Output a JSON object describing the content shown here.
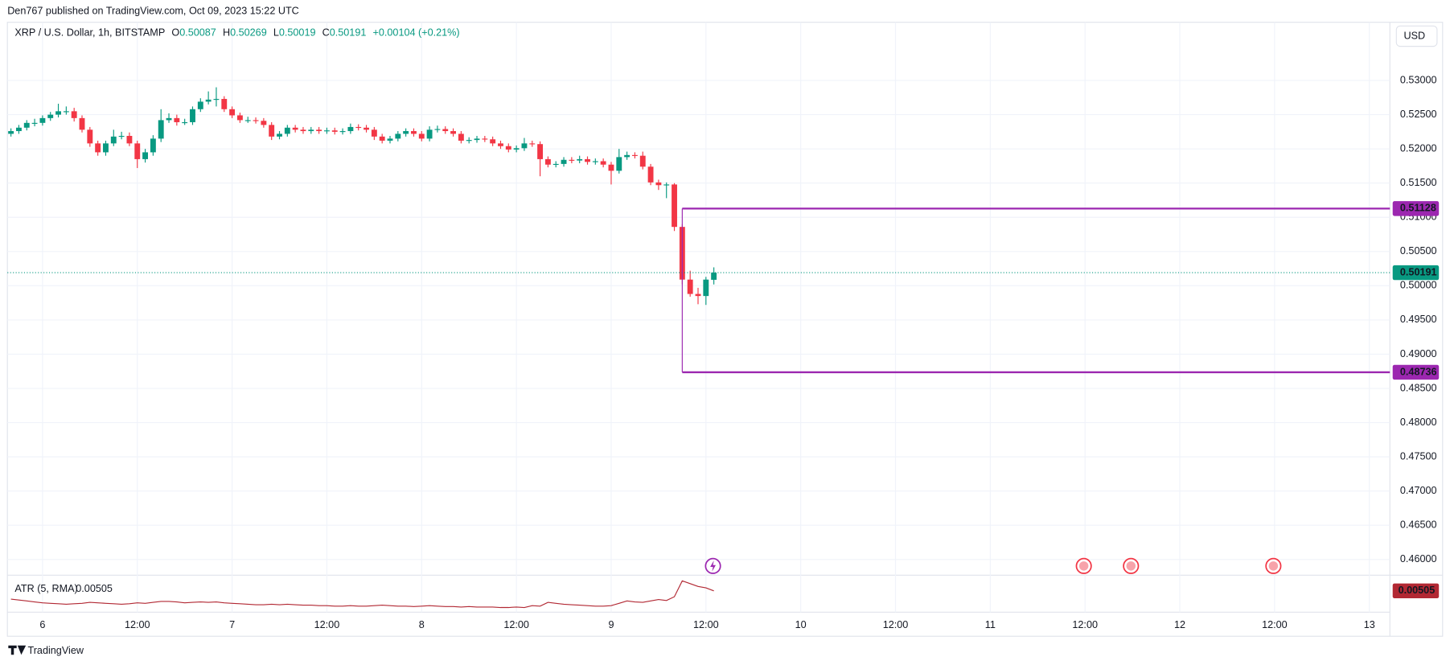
{
  "header": "Den767 published on TradingView.com, Oct 09, 2023 15:22 UTC",
  "footer": "TradingView",
  "currency_button": "USD",
  "chart_data": {
    "type": "candlestick",
    "legend": {
      "symbol": "XRP / U.S. Dollar, 1h, BITSTAMP",
      "o_label": "O",
      "o": "0.50087",
      "h_label": "H",
      "h": "0.50269",
      "l_label": "L",
      "l": "0.50019",
      "c_label": "C",
      "c": "0.50191",
      "change": "+0.00104 (+0.21%)"
    },
    "up_color": "#089981",
    "down_color": "#f23645",
    "candles": [
      [
        0.5222,
        0.523,
        0.5218,
        0.5226
      ],
      [
        0.5226,
        0.5235,
        0.5222,
        0.5231
      ],
      [
        0.5231,
        0.5242,
        0.5227,
        0.5238
      ],
      [
        0.5238,
        0.5244,
        0.5233,
        0.5238
      ],
      [
        0.5238,
        0.5249,
        0.5234,
        0.5245
      ],
      [
        0.5245,
        0.5254,
        0.5241,
        0.525
      ],
      [
        0.525,
        0.5266,
        0.5246,
        0.5255
      ],
      [
        0.5255,
        0.5262,
        0.525,
        0.5255
      ],
      [
        0.5255,
        0.526,
        0.524,
        0.5245
      ],
      [
        0.5245,
        0.5249,
        0.5224,
        0.5228
      ],
      [
        0.5228,
        0.5232,
        0.5203,
        0.5208
      ],
      [
        0.5208,
        0.5212,
        0.519,
        0.5195
      ],
      [
        0.5195,
        0.5212,
        0.519,
        0.5208
      ],
      [
        0.5208,
        0.5228,
        0.5204,
        0.5218
      ],
      [
        0.5218,
        0.5225,
        0.5214,
        0.5219
      ],
      [
        0.5219,
        0.5224,
        0.5204,
        0.5208
      ],
      [
        0.5208,
        0.5212,
        0.5172,
        0.5185
      ],
      [
        0.5185,
        0.52,
        0.518,
        0.5195
      ],
      [
        0.5195,
        0.522,
        0.519,
        0.5215
      ],
      [
        0.5215,
        0.5258,
        0.521,
        0.5242
      ],
      [
        0.5242,
        0.5252,
        0.5238,
        0.5245
      ],
      [
        0.5245,
        0.525,
        0.5234,
        0.5239
      ],
      [
        0.5239,
        0.5244,
        0.5235,
        0.5239
      ],
      [
        0.5239,
        0.5262,
        0.5235,
        0.5258
      ],
      [
        0.5258,
        0.5274,
        0.5254,
        0.5269
      ],
      [
        0.5269,
        0.5284,
        0.5265,
        0.5272
      ],
      [
        0.5272,
        0.529,
        0.5262,
        0.5273
      ],
      [
        0.5273,
        0.5277,
        0.5254,
        0.5258
      ],
      [
        0.5258,
        0.5262,
        0.5245,
        0.5249
      ],
      [
        0.5249,
        0.5253,
        0.5238,
        0.5242
      ],
      [
        0.5242,
        0.5247,
        0.5238,
        0.5242
      ],
      [
        0.5242,
        0.5246,
        0.5237,
        0.5241
      ],
      [
        0.5241,
        0.5245,
        0.5231,
        0.5235
      ],
      [
        0.5235,
        0.5239,
        0.5213,
        0.5218
      ],
      [
        0.5218,
        0.5226,
        0.5214,
        0.5222
      ],
      [
        0.5222,
        0.5235,
        0.5218,
        0.5231
      ],
      [
        0.5231,
        0.5235,
        0.5224,
        0.5228
      ],
      [
        0.5228,
        0.5232,
        0.5222,
        0.5226
      ],
      [
        0.5226,
        0.5232,
        0.5222,
        0.5228
      ],
      [
        0.5228,
        0.5232,
        0.5222,
        0.5226
      ],
      [
        0.5226,
        0.5231,
        0.5222,
        0.5227
      ],
      [
        0.5227,
        0.5231,
        0.5221,
        0.5225
      ],
      [
        0.5225,
        0.523,
        0.5221,
        0.5226
      ],
      [
        0.5226,
        0.5237,
        0.5222,
        0.5232
      ],
      [
        0.5232,
        0.5236,
        0.5227,
        0.5231
      ],
      [
        0.5231,
        0.5235,
        0.5224,
        0.5228
      ],
      [
        0.5228,
        0.5232,
        0.5213,
        0.5218
      ],
      [
        0.5218,
        0.5222,
        0.5208,
        0.5212
      ],
      [
        0.5212,
        0.5219,
        0.5208,
        0.5215
      ],
      [
        0.5215,
        0.5226,
        0.5211,
        0.5222
      ],
      [
        0.5222,
        0.523,
        0.5218,
        0.5226
      ],
      [
        0.5226,
        0.523,
        0.5218,
        0.5222
      ],
      [
        0.5222,
        0.5226,
        0.5211,
        0.5215
      ],
      [
        0.5215,
        0.5233,
        0.5211,
        0.5228
      ],
      [
        0.5228,
        0.5234,
        0.5224,
        0.5229
      ],
      [
        0.5229,
        0.5233,
        0.5222,
        0.5226
      ],
      [
        0.5226,
        0.523,
        0.5218,
        0.5222
      ],
      [
        0.5222,
        0.5226,
        0.5208,
        0.5212
      ],
      [
        0.5212,
        0.5217,
        0.5208,
        0.5213
      ],
      [
        0.5213,
        0.5219,
        0.5209,
        0.5215
      ],
      [
        0.5215,
        0.5219,
        0.521,
        0.5214
      ],
      [
        0.5214,
        0.5218,
        0.5204,
        0.5208
      ],
      [
        0.5208,
        0.5212,
        0.52,
        0.5204
      ],
      [
        0.5204,
        0.5208,
        0.5195,
        0.5199
      ],
      [
        0.5199,
        0.5205,
        0.5195,
        0.5201
      ],
      [
        0.5201,
        0.5216,
        0.5197,
        0.5208
      ],
      [
        0.5208,
        0.5212,
        0.5203,
        0.5207
      ],
      [
        0.5207,
        0.5211,
        0.516,
        0.5185
      ],
      [
        0.5185,
        0.5189,
        0.5173,
        0.5177
      ],
      [
        0.5177,
        0.5182,
        0.5173,
        0.5178
      ],
      [
        0.5178,
        0.5188,
        0.5174,
        0.5184
      ],
      [
        0.5184,
        0.5188,
        0.5179,
        0.5183
      ],
      [
        0.5183,
        0.519,
        0.5179,
        0.5185
      ],
      [
        0.5185,
        0.5189,
        0.5177,
        0.5181
      ],
      [
        0.5181,
        0.5186,
        0.5177,
        0.5182
      ],
      [
        0.5182,
        0.5186,
        0.5173,
        0.5177
      ],
      [
        0.5177,
        0.5181,
        0.5148,
        0.5168
      ],
      [
        0.5168,
        0.52,
        0.5164,
        0.5188
      ],
      [
        0.5188,
        0.5196,
        0.5184,
        0.5191
      ],
      [
        0.5191,
        0.5195,
        0.5186,
        0.519
      ],
      [
        0.519,
        0.5196,
        0.517,
        0.5174
      ],
      [
        0.5174,
        0.5178,
        0.5147,
        0.5151
      ],
      [
        0.5151,
        0.5155,
        0.514,
        0.5147
      ],
      [
        0.5147,
        0.5151,
        0.5128,
        0.5148
      ],
      [
        0.5148,
        0.515,
        0.508,
        0.5086
      ],
      [
        0.5086,
        0.509,
        0.5002,
        0.5009
      ],
      [
        0.5009,
        0.5022,
        0.4984,
        0.4988
      ],
      [
        0.4988,
        0.4997,
        0.4973,
        0.4985
      ],
      [
        0.4985,
        0.5013,
        0.4972,
        0.5009
      ],
      [
        0.50087,
        0.50269,
        0.50019,
        0.50191
      ]
    ],
    "xlim": [
      -0.45,
      174.6
    ],
    "xticks": [
      {
        "value": 4,
        "label": "6"
      },
      {
        "value": 16,
        "label": "12:00"
      },
      {
        "value": 28,
        "label": "7"
      },
      {
        "value": 40,
        "label": "12:00"
      },
      {
        "value": 52,
        "label": "8"
      },
      {
        "value": 64,
        "label": "12:00"
      },
      {
        "value": 76,
        "label": "9"
      },
      {
        "value": 88,
        "label": "12:00"
      },
      {
        "value": 100,
        "label": "10"
      },
      {
        "value": 112,
        "label": "12:00"
      },
      {
        "value": 124,
        "label": "11"
      },
      {
        "value": 136,
        "label": "12:00"
      },
      {
        "value": 148,
        "label": "12"
      },
      {
        "value": 160,
        "label": "12:00"
      },
      {
        "value": 172,
        "label": "13"
      }
    ],
    "ylim": [
      0.4577,
      0.5385
    ],
    "yticks": [
      {
        "value": 0.53,
        "label": "0.53000"
      },
      {
        "value": 0.525,
        "label": "0.52500"
      },
      {
        "value": 0.52,
        "label": "0.52000"
      },
      {
        "value": 0.515,
        "label": "0.51500"
      },
      {
        "value": 0.51,
        "label": "0.51000"
      },
      {
        "value": 0.505,
        "label": "0.50500"
      },
      {
        "value": 0.5,
        "label": "0.50000"
      },
      {
        "value": 0.495,
        "label": "0.49500"
      },
      {
        "value": 0.49,
        "label": "0.49000"
      },
      {
        "value": 0.485,
        "label": "0.48500"
      },
      {
        "value": 0.48,
        "label": "0.48000"
      },
      {
        "value": 0.475,
        "label": "0.47500"
      },
      {
        "value": 0.47,
        "label": "0.47000"
      },
      {
        "value": 0.465,
        "label": "0.46500"
      },
      {
        "value": 0.46,
        "label": "0.46000"
      }
    ],
    "grid": true,
    "levels": {
      "color": "#9c27b0",
      "start": 85,
      "items": [
        {
          "value": 0.51128,
          "label": "0.51128"
        },
        {
          "value": 0.48736,
          "label": "0.48736"
        }
      ]
    },
    "last_price": {
      "value": 0.50191,
      "label": "0.50191"
    },
    "atr": {
      "name": "ATR (5, RMA)",
      "color": "#b22833",
      "value_label": "0.00505",
      "ylim": [
        0.0005,
        0.0082
      ],
      "values": [
        0.0033,
        0.0031,
        0.0029,
        0.0027,
        0.0025,
        0.0024,
        0.0023,
        0.0022,
        0.0023,
        0.0024,
        0.0026,
        0.0025,
        0.0024,
        0.0023,
        0.0022,
        0.0023,
        0.0025,
        0.0024,
        0.0026,
        0.0028,
        0.0028,
        0.0027,
        0.0025,
        0.0026,
        0.0027,
        0.0026,
        0.0027,
        0.0025,
        0.0024,
        0.0023,
        0.0022,
        0.0021,
        0.0021,
        0.0022,
        0.0021,
        0.0022,
        0.0021,
        0.002,
        0.002,
        0.0019,
        0.0019,
        0.0018,
        0.0018,
        0.0019,
        0.0018,
        0.0018,
        0.0019,
        0.002,
        0.0019,
        0.0018,
        0.0018,
        0.0017,
        0.0018,
        0.0019,
        0.0018,
        0.0017,
        0.0017,
        0.0016,
        0.0017,
        0.0016,
        0.0016,
        0.0016,
        0.0015,
        0.0015,
        0.0016,
        0.0015,
        0.0019,
        0.0018,
        0.0026,
        0.0024,
        0.0022,
        0.0021,
        0.002,
        0.0019,
        0.0018,
        0.0018,
        0.0019,
        0.0024,
        0.0029,
        0.0027,
        0.0026,
        0.0029,
        0.0032,
        0.003,
        0.0038,
        0.0072,
        0.0066,
        0.006,
        0.0057,
        0.00505
      ]
    }
  }
}
